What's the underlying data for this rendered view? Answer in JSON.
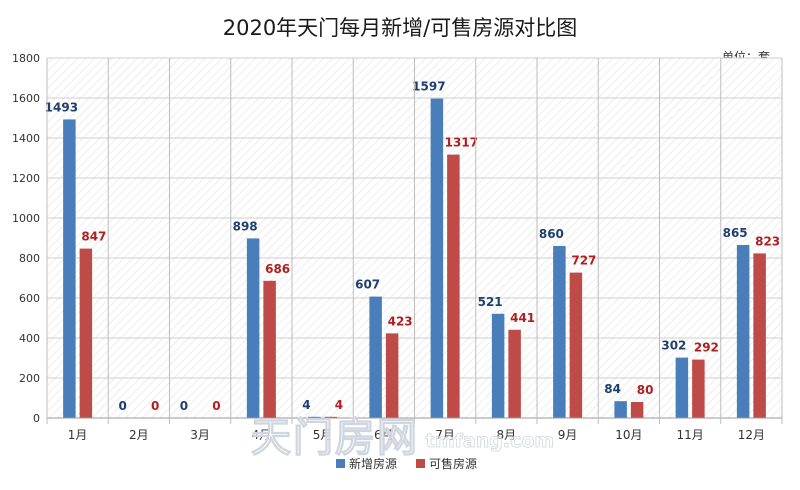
{
  "chart_data": {
    "type": "bar",
    "title": "2020年天门每月新增/可售房源对比图",
    "unit_label": "单位：套",
    "categories": [
      "1月",
      "2月",
      "3月",
      "4月",
      "5月",
      "6月",
      "7月",
      "8月",
      "9月",
      "10月",
      "11月",
      "12月"
    ],
    "series": [
      {
        "name": "新增房源",
        "color": "#4a7ebb",
        "label_color": "#1f3f6f",
        "values": [
          1493,
          0,
          0,
          898,
          4,
          607,
          1597,
          521,
          860,
          84,
          302,
          865
        ]
      },
      {
        "name": "可售房源",
        "color": "#be4b48",
        "label_color": "#b01f1f",
        "values": [
          847,
          0,
          0,
          686,
          4,
          423,
          1317,
          441,
          727,
          80,
          292,
          823
        ]
      }
    ],
    "ylim": [
      0,
      1800
    ],
    "yticks": [
      0,
      200,
      400,
      600,
      800,
      1000,
      1200,
      1400,
      1600,
      1800
    ],
    "grid": true,
    "legend_position": "bottom-center"
  },
  "watermark": {
    "text": "天门房网",
    "url": "tmfang.com"
  }
}
